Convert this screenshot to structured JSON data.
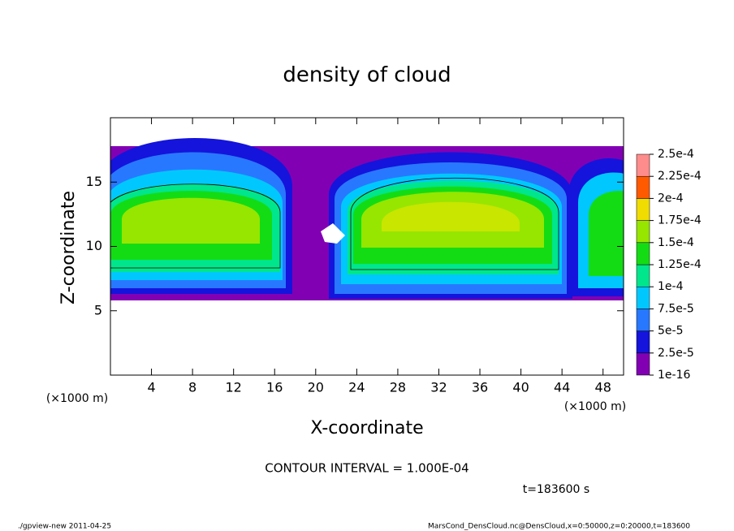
{
  "chart_data": {
    "type": "contour",
    "title": "density of cloud",
    "x_label": "X-coordinate",
    "y_label": "Z-coordinate",
    "x_unit": "(×1000 m)",
    "y_unit": "(×1000 m)",
    "xlim": [
      0,
      50
    ],
    "ylim": [
      0,
      20
    ],
    "xticks": [
      4,
      8,
      12,
      16,
      20,
      24,
      28,
      32,
      36,
      40,
      44,
      48
    ],
    "yticks": [
      5,
      10,
      15
    ],
    "colorbar": {
      "levels": [
        {
          "value": 1e-16,
          "label": "1e-16"
        },
        {
          "value": 2.5e-05,
          "label": "2.5e-5"
        },
        {
          "value": 5e-05,
          "label": "5e-5"
        },
        {
          "value": 7.5e-05,
          "label": "7.5e-5"
        },
        {
          "value": 0.0001,
          "label": "1e-4"
        },
        {
          "value": 0.000125,
          "label": "1.25e-4"
        },
        {
          "value": 0.00015,
          "label": "1.5e-4"
        },
        {
          "value": 0.000175,
          "label": "1.75e-4"
        },
        {
          "value": 0.0002,
          "label": "2e-4"
        },
        {
          "value": 0.000225,
          "label": "2.25e-4"
        },
        {
          "value": 0.00025,
          "label": "2.5e-4"
        }
      ],
      "colors": [
        "#8200b4",
        "#1414dc",
        "#2878ff",
        "#00c8ff",
        "#00e68c",
        "#14dc14",
        "#96e600",
        "#f0dc00",
        "#ff5a00",
        "#ff8c8c"
      ]
    },
    "contour_interval_text": "CONTOUR INTERVAL = 1.000E-04",
    "time_text": "t=183600 s",
    "footer_left": "./gpview-new  2011-04-25",
    "footer_right": "MarsCond_DensCloud.nc@DensCloud,x=0:50000,z=0:20000,t=183600"
  }
}
